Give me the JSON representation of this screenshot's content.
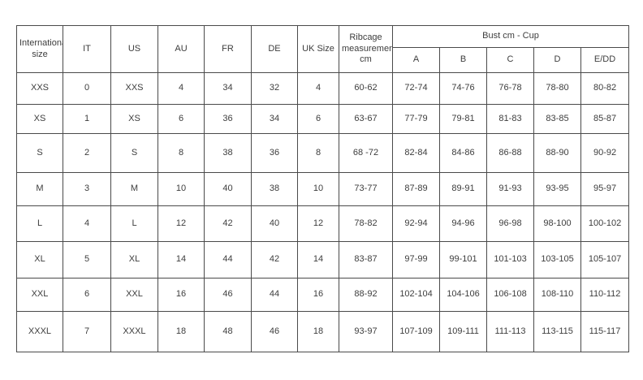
{
  "chart_data": {
    "type": "table",
    "column_headers": [
      "International size",
      "IT",
      "US",
      "AU",
      "FR",
      "DE",
      "UK Size",
      "Ribcage measurements cm"
    ],
    "group_header": {
      "label": "Bust cm - Cup",
      "sub_headers": [
        "A",
        "B",
        "C",
        "D",
        "E/DD"
      ]
    },
    "rows": [
      [
        "XXS",
        "0",
        "XXS",
        "4",
        "34",
        "32",
        "4",
        "60-62",
        "72-74",
        "74-76",
        "76-78",
        "78-80",
        "80-82"
      ],
      [
        "XS",
        "1",
        "XS",
        "6",
        "36",
        "34",
        "6",
        "63-67",
        "77-79",
        "79-81",
        "81-83",
        "83-85",
        "85-87"
      ],
      [
        "S",
        "2",
        "S",
        "8",
        "38",
        "36",
        "8",
        "68 -72",
        "82-84",
        "84-86",
        "86-88",
        "88-90",
        "90-92"
      ],
      [
        "M",
        "3",
        "M",
        "10",
        "40",
        "38",
        "10",
        "73-77",
        "87-89",
        "89-91",
        "91-93",
        "93-95",
        "95-97"
      ],
      [
        "L",
        "4",
        "L",
        "12",
        "42",
        "40",
        "12",
        "78-82",
        "92-94",
        "94-96",
        "96-98",
        "98-100",
        "100-102"
      ],
      [
        "XL",
        "5",
        "XL",
        "14",
        "44",
        "42",
        "14",
        "83-87",
        "97-99",
        "99-101",
        "101-103",
        "103-105",
        "105-107"
      ],
      [
        "XXL",
        "6",
        "XXL",
        "16",
        "46",
        "44",
        "16",
        "88-92",
        "102-104",
        "104-106",
        "106-108",
        "108-110",
        "110-112"
      ],
      [
        "XXXL",
        "7",
        "XXXL",
        "18",
        "48",
        "46",
        "18",
        "93-97",
        "107-109",
        "109-111",
        "111-113",
        "113-115",
        "115-117"
      ]
    ],
    "colors": {
      "border": "#4a4a4a",
      "text": "#3d3d3d",
      "background": "#ffffff"
    }
  }
}
